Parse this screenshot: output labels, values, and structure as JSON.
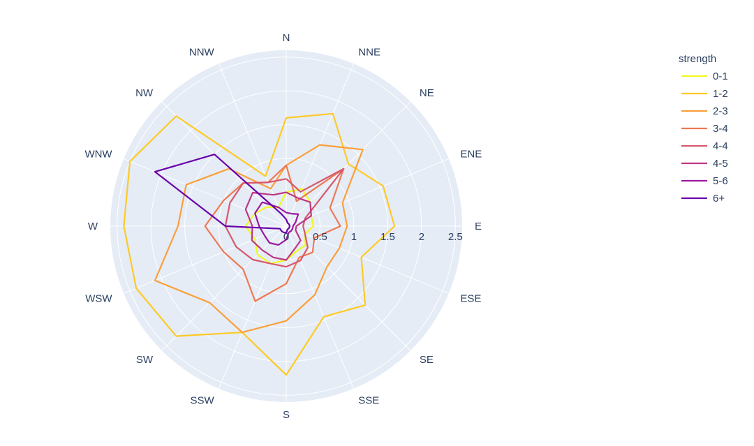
{
  "chart_data": {
    "type": "line",
    "subtype": "polar",
    "directions": [
      "N",
      "NNE",
      "NE",
      "ENE",
      "E",
      "ESE",
      "SE",
      "SSE",
      "S",
      "SSW",
      "SW",
      "WSW",
      "W",
      "WNW",
      "NW",
      "NNW"
    ],
    "radial_ticks": [
      "0",
      "0.5",
      "1",
      "1.5",
      "2",
      "2.5"
    ],
    "radial_range": [
      0,
      2.6
    ],
    "legend": {
      "title": "strength",
      "placement": "top-right"
    },
    "series": [
      {
        "name": "0-1",
        "color": "#f0f921",
        "values": [
          0.5,
          0.6,
          0.5,
          0.4,
          0.4,
          0.3,
          0.4,
          0.4,
          0.5,
          0.6,
          0.6,
          0.5,
          0.6,
          0.5,
          0.4,
          0.3
        ]
      },
      {
        "name": "1-2",
        "color": "#fdca26",
        "values": [
          1.6,
          1.8,
          1.3,
          1.55,
          1.6,
          1.2,
          1.65,
          1.45,
          2.2,
          1.7,
          2.3,
          2.4,
          2.4,
          2.5,
          2.3,
          0.8
        ]
      },
      {
        "name": "2-3",
        "color": "#fb9f3a",
        "values": [
          0.9,
          1.3,
          1.6,
          0.9,
          0.9,
          0.85,
          0.85,
          1.1,
          1.4,
          1.7,
          1.6,
          2.1,
          1.6,
          1.6,
          1.2,
          0.6
        ]
      },
      {
        "name": "3-4",
        "color": "#ed7953",
        "values": [
          0.9,
          0.4,
          1.2,
          0.7,
          0.8,
          0.45,
          0.55,
          0.5,
          0.85,
          1.2,
          0.9,
          1.0,
          1.2,
          1.0,
          0.9,
          0.7
        ]
      },
      {
        "name": "4-4",
        "color": "#d8576b",
        "values": [
          0.7,
          0.55,
          1.2,
          0.3,
          0.25,
          0.3,
          0.45,
          0.55,
          0.6,
          0.6,
          0.7,
          0.8,
          0.9,
          0.9,
          0.9,
          0.7
        ]
      },
      {
        "name": "4-5",
        "color": "#bd3786",
        "values": [
          0.5,
          0.45,
          0.5,
          0.4,
          0.15,
          0.15,
          0.3,
          0.35,
          0.5,
          0.5,
          0.5,
          0.55,
          0.5,
          0.65,
          0.7,
          0.5
        ]
      },
      {
        "name": "5-6",
        "color": "#9c179e",
        "values": [
          0.2,
          0.2,
          0.25,
          0.15,
          0.1,
          0.1,
          0.1,
          0.1,
          0.2,
          0.3,
          0.35,
          0.35,
          0.4,
          0.5,
          0.5,
          0.3
        ]
      },
      {
        "name": "6+",
        "color": "#6a00a8",
        "values": [
          0.1,
          0.05,
          0.05,
          0.05,
          0.05,
          0.05,
          0.05,
          0.05,
          0.1,
          0.1,
          0.1,
          0.1,
          0.9,
          2.1,
          1.5,
          0.2
        ]
      }
    ],
    "polar_background": "#e5ecf6",
    "grid_color": "#ffffff",
    "grid": true
  }
}
